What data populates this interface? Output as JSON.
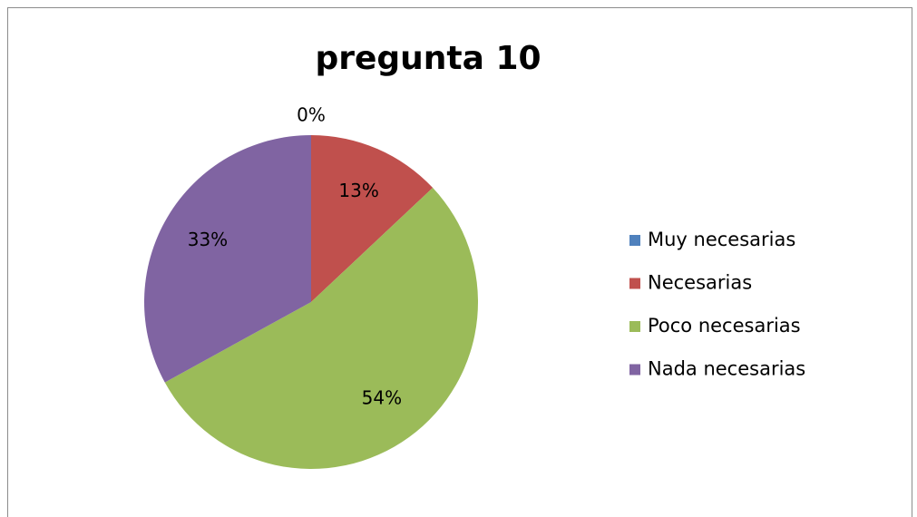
{
  "chart_data": {
    "type": "pie",
    "title": "pregunta 10",
    "categories": [
      "Muy necesarias",
      "Necesarias",
      "Poco necesarias",
      "Nada necesarias"
    ],
    "values": [
      0,
      13,
      54,
      33
    ],
    "value_labels": [
      "0%",
      "13%",
      "54%",
      "33%"
    ],
    "colors": [
      "#4f81bd",
      "#c0504d",
      "#9bbb59",
      "#8064a2"
    ],
    "legend": "right"
  }
}
